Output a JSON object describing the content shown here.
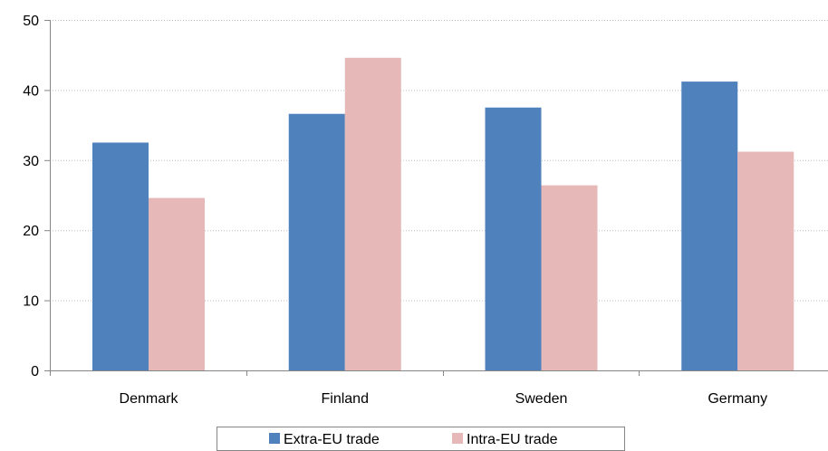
{
  "chart_data": {
    "type": "bar",
    "categories": [
      "Denmark",
      "Finland",
      "Sweden",
      "Germany"
    ],
    "series": [
      {
        "name": "Extra-EU trade",
        "color": "#4f81bd",
        "values": [
          32.5,
          36.6,
          37.5,
          41.2
        ]
      },
      {
        "name": "Intra-EU trade",
        "color": "#e6b8b7",
        "values": [
          24.6,
          44.6,
          26.4,
          31.2
        ]
      }
    ],
    "yticks": [
      "0",
      "10",
      "20",
      "30",
      "40",
      "50"
    ],
    "ylim": [
      0,
      50
    ],
    "grid": true,
    "legend_position": "bottom-center",
    "title": "",
    "xlabel": "",
    "ylabel": ""
  }
}
